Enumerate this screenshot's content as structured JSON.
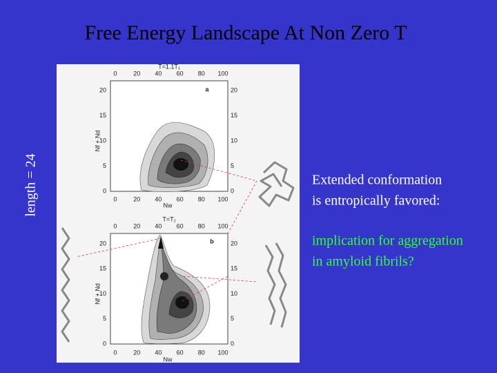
{
  "slide": {
    "title": "Free Energy Landscape At Non Zero T",
    "side_label": "length = 24",
    "figure": {
      "panels": [
        {
          "letter": "a",
          "temperature": "T=1.1T₁",
          "x_label": "Nw",
          "y_label": "Nf + Nd",
          "x_ticks": [
            0,
            20,
            40,
            60,
            80,
            100
          ],
          "y_ticks": [
            0,
            5,
            10,
            15,
            20
          ]
        },
        {
          "letter": "b",
          "temperature": "T=T₁",
          "x_label": "Nw",
          "y_label": "Nf + Nd",
          "x_ticks": [
            0,
            20,
            40,
            60,
            80,
            100
          ],
          "y_ticks": [
            0,
            5,
            10,
            15,
            20
          ]
        }
      ]
    },
    "text_blocks": [
      {
        "lines": [
          "Extended conformation",
          "is entropically favored:"
        ],
        "color": "#ffffff"
      },
      {
        "lines": [
          "implication for aggregation",
          "in amyloid fibrils?"
        ],
        "color": "#33ff33"
      }
    ]
  }
}
